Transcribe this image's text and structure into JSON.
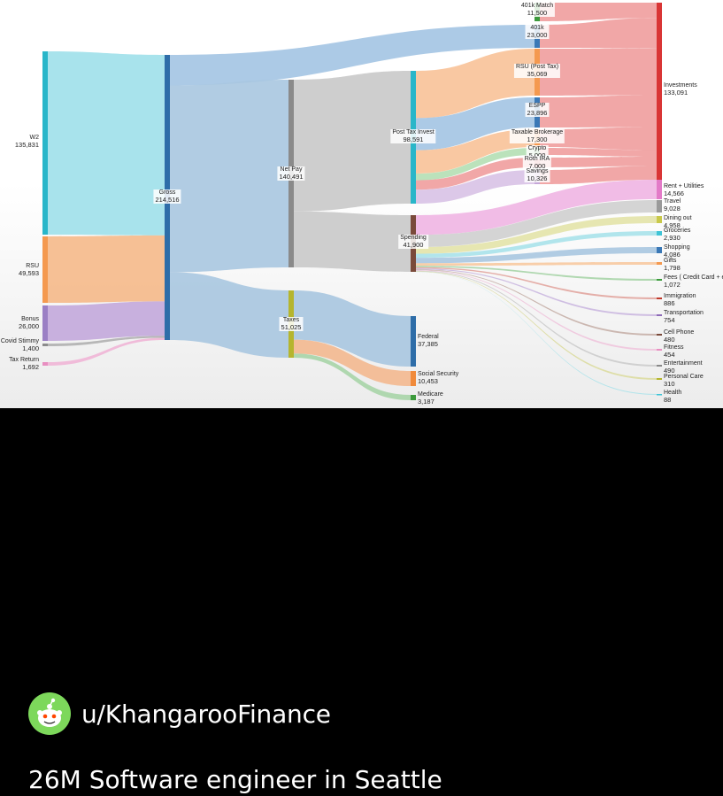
{
  "post": {
    "username": "u/KhangarooFinance",
    "title": "26M Software engineer in Seattle",
    "avatar_icon": "reddit-snoo-avatar-icon"
  },
  "chart_data": {
    "type": "sankey",
    "title": "",
    "nodes": [
      {
        "id": "w2",
        "label": "W2",
        "value": "135,831",
        "color": "#29b6c9"
      },
      {
        "id": "rsu",
        "label": "RSU",
        "value": "49,593",
        "color": "#f4994f"
      },
      {
        "id": "bonus",
        "label": "Bonus",
        "value": "26,000",
        "color": "#9b7fc4"
      },
      {
        "id": "covid",
        "label": "Covid Stimmy",
        "value": "1,400",
        "color": "#8b8b8b"
      },
      {
        "id": "taxret",
        "label": "Tax Return",
        "value": "1,692",
        "color": "#e88fc1"
      },
      {
        "id": "gross",
        "label": "Gross",
        "value": "214,516",
        "color": "#2e6da8"
      },
      {
        "id": "netpay",
        "label": "Net Pay",
        "value": "140,491",
        "color": "#8a8a8a"
      },
      {
        "id": "taxes",
        "label": "Taxes",
        "value": "51,025",
        "color": "#b5b52e"
      },
      {
        "id": "m401",
        "label": "401k Match",
        "value": "11,500",
        "color": "#3c9a3c"
      },
      {
        "id": "k401",
        "label": "401k",
        "value": "23,000",
        "color": "#3a78b6"
      },
      {
        "id": "posttax",
        "label": "Post Tax Invest",
        "value": "98,591",
        "color": "#29b6c9"
      },
      {
        "id": "spending",
        "label": "Spending",
        "value": "41,900",
        "color": "#7a4a3a"
      },
      {
        "id": "rsupost",
        "label": "RSU (Post Tax)",
        "value": "35,069",
        "color": "#f4994f"
      },
      {
        "id": "espp",
        "label": "ESPP",
        "value": "23,896",
        "color": "#3a78b6"
      },
      {
        "id": "taxable",
        "label": "Taxable Brokerage",
        "value": "17,300",
        "color": "#f4994f"
      },
      {
        "id": "crypto",
        "label": "Crypto",
        "value": "5,000",
        "color": "#7cc47c"
      },
      {
        "id": "roth",
        "label": "Roth IRA",
        "value": "7,000",
        "color": "#e07070"
      },
      {
        "id": "savings",
        "label": "Savings",
        "value": "10,326",
        "color": "#c5a7d8"
      },
      {
        "id": "federal",
        "label": "Federal",
        "value": "37,385",
        "color": "#2e6da8"
      },
      {
        "id": "ss",
        "label": "Social Security",
        "value": "10,453",
        "color": "#f08a3a"
      },
      {
        "id": "medicare",
        "label": "Medicare",
        "value": "3,187",
        "color": "#3c9a3c"
      },
      {
        "id": "invest",
        "label": "Investments",
        "value": "133,091",
        "color": "#d93535"
      },
      {
        "id": "rent",
        "label": "Rent + Utilities",
        "value": "14,566",
        "color": "#e37ac8"
      },
      {
        "id": "travel",
        "label": "Travel",
        "value": "9,028",
        "color": "#9a9a9a"
      },
      {
        "id": "dining",
        "label": "Dining out",
        "value": "4,958",
        "color": "#c9c94a"
      },
      {
        "id": "groceries",
        "label": "Groceries",
        "value": "2,930",
        "color": "#3fc4d6"
      },
      {
        "id": "shopping",
        "label": "Shopping",
        "value": "4,086",
        "color": "#3a78b6"
      },
      {
        "id": "gifts",
        "label": "Gifts",
        "value": "1,798",
        "color": "#f4994f"
      },
      {
        "id": "fees",
        "label": "Fees ( Credit Card + etc",
        "value": "1,072",
        "color": "#3c9a3c"
      },
      {
        "id": "immigration",
        "label": "Immigration",
        "value": "886",
        "color": "#c0392b"
      },
      {
        "id": "transport",
        "label": "Transportation",
        "value": "754",
        "color": "#8e6bb8"
      },
      {
        "id": "cell",
        "label": "Cell Phone",
        "value": "480",
        "color": "#7a4a3a"
      },
      {
        "id": "fitness",
        "label": "Fitness",
        "value": "454",
        "color": "#e88fc1"
      },
      {
        "id": "entertain",
        "label": "Entertainment",
        "value": "490",
        "color": "#888888"
      },
      {
        "id": "personal",
        "label": "Personal Care",
        "value": "310",
        "color": "#b5b52e"
      },
      {
        "id": "health",
        "label": "Health",
        "value": "88",
        "color": "#3fc4d6"
      }
    ],
    "links": [
      {
        "source": "w2",
        "target": "gross",
        "value": 135831
      },
      {
        "source": "rsu",
        "target": "gross",
        "value": 49593
      },
      {
        "source": "bonus",
        "target": "gross",
        "value": 26000
      },
      {
        "source": "covid",
        "target": "gross",
        "value": 1400
      },
      {
        "source": "taxret",
        "target": "gross",
        "value": 1692
      },
      {
        "source": "gross",
        "target": "k401",
        "value": 23000
      },
      {
        "source": "gross",
        "target": "netpay",
        "value": 140491
      },
      {
        "source": "gross",
        "target": "taxes",
        "value": 51025
      },
      {
        "source": "netpay",
        "target": "posttax",
        "value": 98591
      },
      {
        "source": "netpay",
        "target": "spending",
        "value": 41900
      },
      {
        "source": "taxes",
        "target": "federal",
        "value": 37385
      },
      {
        "source": "taxes",
        "target": "ss",
        "value": 10453
      },
      {
        "source": "taxes",
        "target": "medicare",
        "value": 3187
      },
      {
        "source": "posttax",
        "target": "rsupost",
        "value": 35069
      },
      {
        "source": "posttax",
        "target": "espp",
        "value": 23896
      },
      {
        "source": "posttax",
        "target": "taxable",
        "value": 17300
      },
      {
        "source": "posttax",
        "target": "crypto",
        "value": 5000
      },
      {
        "source": "posttax",
        "target": "roth",
        "value": 7000
      },
      {
        "source": "posttax",
        "target": "savings",
        "value": 10326
      },
      {
        "source": "m401",
        "target": "invest",
        "value": 11500
      },
      {
        "source": "k401",
        "target": "invest",
        "value": 23000
      },
      {
        "source": "rsupost",
        "target": "invest",
        "value": 35069
      },
      {
        "source": "espp",
        "target": "invest",
        "value": 23896
      },
      {
        "source": "taxable",
        "target": "invest",
        "value": 17300
      },
      {
        "source": "crypto",
        "target": "invest",
        "value": 5000
      },
      {
        "source": "roth",
        "target": "invest",
        "value": 7000
      },
      {
        "source": "savings",
        "target": "invest",
        "value": 10326
      },
      {
        "source": "spending",
        "target": "rent",
        "value": 14566
      },
      {
        "source": "spending",
        "target": "travel",
        "value": 9028
      },
      {
        "source": "spending",
        "target": "dining",
        "value": 4958
      },
      {
        "source": "spending",
        "target": "groceries",
        "value": 2930
      },
      {
        "source": "spending",
        "target": "shopping",
        "value": 4086
      },
      {
        "source": "spending",
        "target": "gifts",
        "value": 1798
      },
      {
        "source": "spending",
        "target": "fees",
        "value": 1072
      },
      {
        "source": "spending",
        "target": "immigration",
        "value": 886
      },
      {
        "source": "spending",
        "target": "transport",
        "value": 754
      },
      {
        "source": "spending",
        "target": "cell",
        "value": 480
      },
      {
        "source": "spending",
        "target": "fitness",
        "value": 454
      },
      {
        "source": "spending",
        "target": "entertain",
        "value": 490
      },
      {
        "source": "spending",
        "target": "personal",
        "value": 310
      },
      {
        "source": "spending",
        "target": "health",
        "value": 88
      }
    ]
  }
}
